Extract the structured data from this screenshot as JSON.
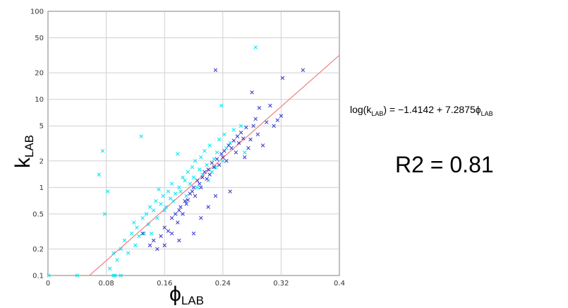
{
  "chart_data": {
    "type": "scatter",
    "xlabel": {
      "main": "ϕ",
      "sub": "LAB"
    },
    "ylabel": {
      "main": "k",
      "sub": "LAB"
    },
    "xlim": [
      0,
      0.4
    ],
    "ylim": [
      0.1,
      100
    ],
    "yscale": "log",
    "x_ticks": [
      "0",
      "0.08",
      "0.16",
      "0.24",
      "0.32",
      "0.4"
    ],
    "y_ticks": [
      "0.1",
      "0.2",
      "0.5",
      "1",
      "2",
      "5",
      "10",
      "20",
      "50",
      "100"
    ],
    "grid": true,
    "series": [
      {
        "color": "#00e5ee",
        "marker": "x",
        "points": [
          [
            0.07,
            1.4
          ],
          [
            0.075,
            2.6
          ],
          [
            0.078,
            0.5
          ],
          [
            0.082,
            0.9
          ],
          [
            0.085,
            0.12
          ],
          [
            0.09,
            0.18
          ],
          [
            0.092,
            0.1
          ],
          [
            0.095,
            0.15
          ],
          [
            0.1,
            0.2
          ],
          [
            0.105,
            0.25
          ],
          [
            0.11,
            0.18
          ],
          [
            0.115,
            0.3
          ],
          [
            0.118,
            0.4
          ],
          [
            0.12,
            0.22
          ],
          [
            0.122,
            0.35
          ],
          [
            0.125,
            0.28
          ],
          [
            0.128,
            3.8
          ],
          [
            0.13,
            0.45
          ],
          [
            0.132,
            0.3
          ],
          [
            0.135,
            0.5
          ],
          [
            0.138,
            0.38
          ],
          [
            0.14,
            0.6
          ],
          [
            0.142,
            0.3
          ],
          [
            0.145,
            0.55
          ],
          [
            0.148,
            0.7
          ],
          [
            0.15,
            0.45
          ],
          [
            0.152,
            0.95
          ],
          [
            0.155,
            0.65
          ],
          [
            0.158,
            0.8
          ],
          [
            0.16,
            0.55
          ],
          [
            0.162,
            0.6
          ],
          [
            0.165,
            0.9
          ],
          [
            0.168,
            0.75
          ],
          [
            0.17,
            1.1
          ],
          [
            0.172,
            0.7
          ],
          [
            0.175,
            0.85
          ],
          [
            0.178,
            2.4
          ],
          [
            0.18,
            1.0
          ],
          [
            0.182,
            0.9
          ],
          [
            0.185,
            1.3
          ],
          [
            0.188,
            1.2
          ],
          [
            0.19,
            0.8
          ],
          [
            0.192,
            1.5
          ],
          [
            0.195,
            1.1
          ],
          [
            0.198,
            1.7
          ],
          [
            0.2,
            1.3
          ],
          [
            0.202,
            2.0
          ],
          [
            0.205,
            1.0
          ],
          [
            0.208,
            1.6
          ],
          [
            0.21,
            2.2
          ],
          [
            0.212,
            1.4
          ],
          [
            0.215,
            2.6
          ],
          [
            0.218,
            1.8
          ],
          [
            0.22,
            1.2
          ],
          [
            0.222,
            3.0
          ],
          [
            0.225,
            1.5
          ],
          [
            0.228,
            2.1
          ],
          [
            0.23,
            1.7
          ],
          [
            0.232,
            2.5
          ],
          [
            0.235,
            3.5
          ],
          [
            0.238,
            8.5
          ],
          [
            0.24,
            2.0
          ],
          [
            0.242,
            4.0
          ],
          [
            0.245,
            2.8
          ],
          [
            0.25,
            3.2
          ],
          [
            0.255,
            4.5
          ],
          [
            0.26,
            3.8
          ],
          [
            0.265,
            5.0
          ],
          [
            0.27,
            2.5
          ],
          [
            0.285,
            39.0
          ],
          [
            0.09,
            0.1
          ],
          [
            0.04,
            0.1
          ],
          [
            0.1,
            0.1
          ],
          [
            0.001,
            0.1
          ]
        ]
      },
      {
        "color": "#3333cc",
        "marker": "x",
        "points": [
          [
            0.13,
            0.3
          ],
          [
            0.14,
            0.22
          ],
          [
            0.145,
            0.25
          ],
          [
            0.15,
            0.2
          ],
          [
            0.155,
            0.28
          ],
          [
            0.16,
            0.35
          ],
          [
            0.165,
            0.32
          ],
          [
            0.17,
            0.45
          ],
          [
            0.175,
            0.5
          ],
          [
            0.178,
            0.4
          ],
          [
            0.18,
            0.55
          ],
          [
            0.182,
            0.6
          ],
          [
            0.185,
            0.5
          ],
          [
            0.188,
            0.7
          ],
          [
            0.19,
            0.65
          ],
          [
            0.192,
            0.72
          ],
          [
            0.195,
            0.85
          ],
          [
            0.198,
            0.9
          ],
          [
            0.2,
            1.0
          ],
          [
            0.202,
            0.8
          ],
          [
            0.205,
            1.2
          ],
          [
            0.208,
            1.1
          ],
          [
            0.21,
            1.0
          ],
          [
            0.212,
            1.3
          ],
          [
            0.215,
            1.5
          ],
          [
            0.218,
            1.25
          ],
          [
            0.22,
            1.6
          ],
          [
            0.222,
            1.4
          ],
          [
            0.225,
            1.9
          ],
          [
            0.228,
            1.7
          ],
          [
            0.23,
            21.5
          ],
          [
            0.232,
            2.1
          ],
          [
            0.235,
            1.8
          ],
          [
            0.238,
            2.4
          ],
          [
            0.24,
            2.2
          ],
          [
            0.242,
            2.6
          ],
          [
            0.245,
            2.0
          ],
          [
            0.248,
            3.0
          ],
          [
            0.25,
            0.9
          ],
          [
            0.252,
            2.8
          ],
          [
            0.255,
            3.4
          ],
          [
            0.258,
            2.5
          ],
          [
            0.26,
            3.8
          ],
          [
            0.262,
            3.2
          ],
          [
            0.265,
            4.2
          ],
          [
            0.268,
            3.6
          ],
          [
            0.27,
            2.2
          ],
          [
            0.272,
            4.8
          ],
          [
            0.275,
            2.8
          ],
          [
            0.278,
            3.5
          ],
          [
            0.28,
            12.0
          ],
          [
            0.282,
            5.0
          ],
          [
            0.285,
            6.0
          ],
          [
            0.288,
            4.0
          ],
          [
            0.29,
            8.0
          ],
          [
            0.295,
            3.0
          ],
          [
            0.3,
            5.5
          ],
          [
            0.305,
            8.5
          ],
          [
            0.31,
            5.0
          ],
          [
            0.315,
            5.8
          ],
          [
            0.32,
            6.5
          ],
          [
            0.322,
            17.5
          ],
          [
            0.35,
            21.5
          ],
          [
            0.2,
            0.3
          ],
          [
            0.21,
            0.45
          ],
          [
            0.22,
            0.6
          ],
          [
            0.23,
            0.8
          ],
          [
            0.17,
            0.3
          ],
          [
            0.16,
            0.22
          ],
          [
            0.18,
            0.25
          ]
        ]
      }
    ],
    "fit_line": {
      "intercept": -1.4142,
      "slope": 7.2875,
      "color": "#f08080"
    },
    "annotations": {
      "equation": {
        "pre": "log(k",
        "sub1": "LAB",
        "mid": ") = −1.4142 + 7.2875ϕ",
        "sub2": "LAB"
      },
      "r2": "R2 = 0.81"
    }
  }
}
